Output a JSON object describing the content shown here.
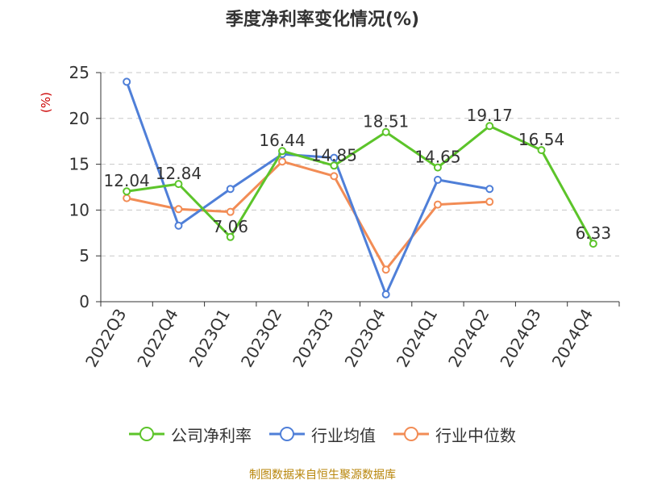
{
  "chart_data": {
    "type": "line",
    "title": "季度净利率变化情况(%)",
    "y_unit_label": "(%)",
    "ylim": [
      0,
      25
    ],
    "y_ticks": [
      0,
      5,
      10,
      15,
      20,
      25
    ],
    "grid": "horizontal-dashed",
    "legend_position": "bottom",
    "categories": [
      "2022Q3",
      "2022Q4",
      "2023Q1",
      "2023Q2",
      "2023Q3",
      "2023Q4",
      "2024Q1",
      "2024Q2",
      "2024Q3",
      "2024Q4"
    ],
    "series": [
      {
        "name": "公司净利率",
        "color": "#5cc42a",
        "values": [
          12.04,
          12.84,
          7.06,
          16.44,
          14.85,
          18.51,
          14.65,
          19.17,
          16.54,
          6.33
        ],
        "labels": [
          "12.04",
          "12.84",
          "7.06",
          "16.44",
          "14.85",
          "18.51",
          "14.65",
          "19.17",
          "16.54",
          "6.33"
        ]
      },
      {
        "name": "行业均值",
        "color": "#4f7fd8",
        "values": [
          24.0,
          8.3,
          12.3,
          16.1,
          15.7,
          0.8,
          13.3,
          12.3,
          null,
          null
        ]
      },
      {
        "name": "行业中位数",
        "color": "#f28c55",
        "values": [
          11.3,
          10.1,
          9.8,
          15.3,
          13.7,
          3.5,
          10.6,
          10.9,
          null,
          null
        ]
      }
    ]
  },
  "source_note": "制图数据来自恒生聚源数据库"
}
